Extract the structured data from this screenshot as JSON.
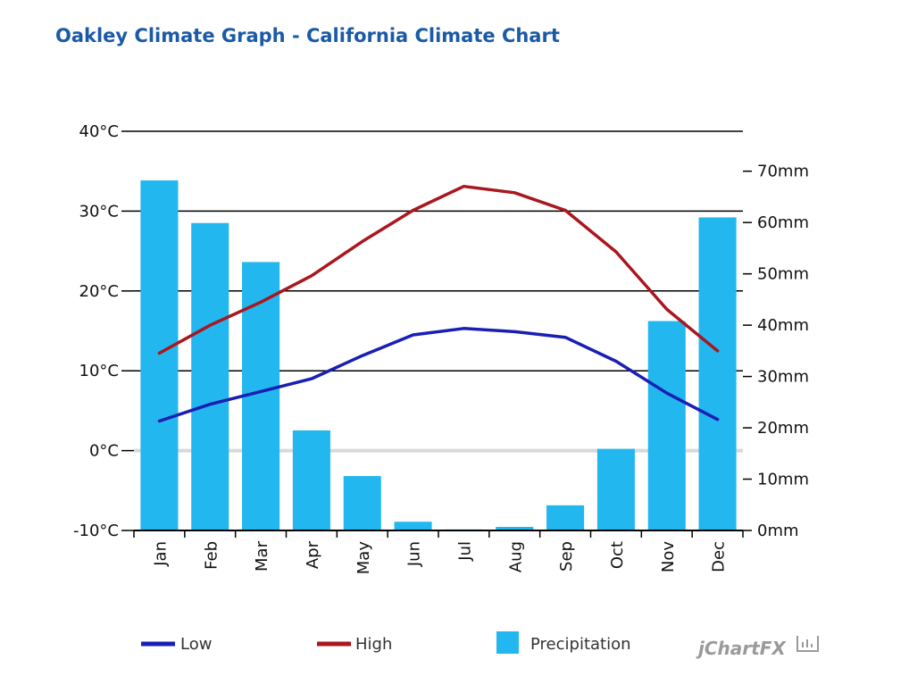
{
  "title": "Oakley Climate Graph - California Climate Chart",
  "brand": "jChartFX",
  "chart_data": {
    "type": "bar",
    "categories": [
      "Jan",
      "Feb",
      "Mar",
      "Apr",
      "May",
      "Jun",
      "Jul",
      "Aug",
      "Sep",
      "Oct",
      "Nov",
      "Dec"
    ],
    "series": [
      {
        "name": "Low",
        "type": "line",
        "axis": "temperature",
        "color": "#1a1fb4",
        "values": [
          3.7,
          5.8,
          7.4,
          9.0,
          11.9,
          14.5,
          15.3,
          14.9,
          14.2,
          11.2,
          7.2,
          3.9
        ]
      },
      {
        "name": "High",
        "type": "line",
        "axis": "temperature",
        "color": "#a9171f",
        "values": [
          12.2,
          15.7,
          18.6,
          21.9,
          26.2,
          30.1,
          33.1,
          32.3,
          30.1,
          24.9,
          17.7,
          12.5
        ]
      },
      {
        "name": "Precipitation",
        "type": "bar",
        "axis": "precipitation",
        "color": "#23b7ef",
        "values": [
          68.2,
          59.9,
          52.3,
          19.5,
          10.6,
          1.7,
          0.2,
          0.7,
          4.9,
          15.9,
          40.8,
          61.0
        ]
      }
    ],
    "y_left": {
      "min": -10,
      "max": 40,
      "ticks": [
        40,
        30,
        20,
        10,
        0,
        -10
      ],
      "tick_labels": [
        "40°C",
        "30°C",
        "20°C",
        "10°C",
        "0°C",
        "-10°C"
      ]
    },
    "y_right": {
      "min": 0,
      "max": 70,
      "ticks": [
        70,
        60,
        50,
        40,
        30,
        20,
        10,
        0
      ],
      "tick_labels": [
        "70mm",
        "60mm",
        "50mm",
        "40mm",
        "30mm",
        "20mm",
        "10mm",
        "0mm"
      ]
    },
    "grid": true,
    "legend_position": "bottom"
  }
}
